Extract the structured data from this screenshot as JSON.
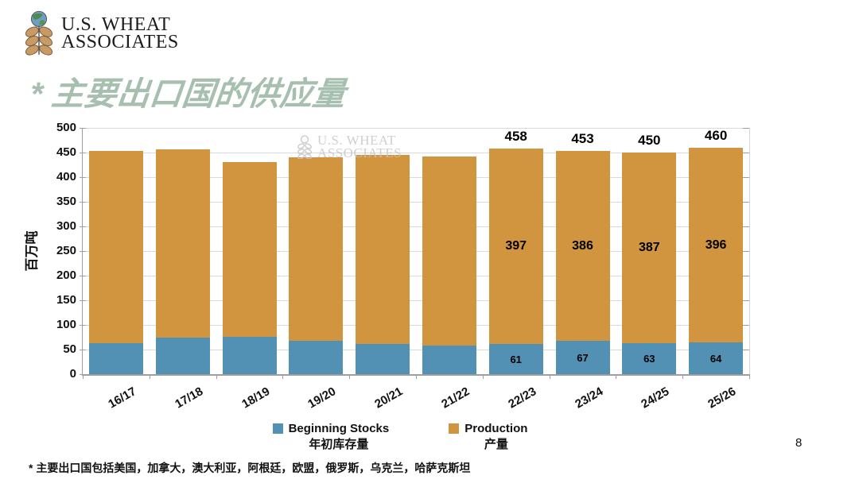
{
  "page_number": "8",
  "logo": {
    "line1": "U.S. WHEAT",
    "line2": "ASSOCIATES"
  },
  "title": "* 主要出口国的供应量",
  "watermark": {
    "line1": "U.S. WHEAT",
    "line2": "ASSOCIATES"
  },
  "footnote": "* 主要出口国包括美国，加拿大，澳大利亚，阿根廷，欧盟，俄罗斯，乌克兰，哈萨克斯坦",
  "colors": {
    "stocks_blue": "#5391B4",
    "production_orange": "#D2953F",
    "title_green": "#A6BFAF",
    "grid": "#DADADA",
    "axis": "#9E9E9E",
    "watermark": "#C7C7C7",
    "text": "#111111"
  },
  "chart_data": {
    "type": "bar",
    "stacked": true,
    "title": "",
    "ylabel": "百万吨",
    "xlabel": "",
    "ylim": [
      0,
      500
    ],
    "ytick_step": 50,
    "yticks": [
      "0",
      "50",
      "100",
      "150",
      "200",
      "250",
      "300",
      "350",
      "400",
      "450",
      "500"
    ],
    "grid": true,
    "legend_position": "bottom",
    "categories": [
      "16/17",
      "17/18",
      "18/19",
      "19/20",
      "20/21",
      "21/22",
      "22/23",
      "23/24",
      "24/25",
      "25/26"
    ],
    "series": [
      {
        "name": "Beginning Stocks",
        "name_zh": "年初库存量",
        "color": "#5391B4",
        "values": [
          63,
          75,
          76,
          67,
          61,
          58,
          61,
          67,
          63,
          64
        ],
        "data_labels": [
          "",
          "",
          "",
          "",
          "",
          "",
          "61",
          "67",
          "63",
          "64"
        ]
      },
      {
        "name": "Production",
        "name_zh": "产量",
        "color": "#D2953F",
        "values": [
          391,
          381,
          354,
          374,
          384,
          384,
          397,
          386,
          387,
          396
        ],
        "data_labels": [
          "",
          "",
          "",
          "",
          "",
          "",
          "397",
          "386",
          "387",
          "396"
        ]
      }
    ],
    "totals": [
      454,
      456,
      430,
      441,
      445,
      442,
      458,
      453,
      450,
      460
    ],
    "total_labels": [
      "",
      "",
      "",
      "",
      "",
      "",
      "458",
      "453",
      "450",
      "460"
    ]
  }
}
